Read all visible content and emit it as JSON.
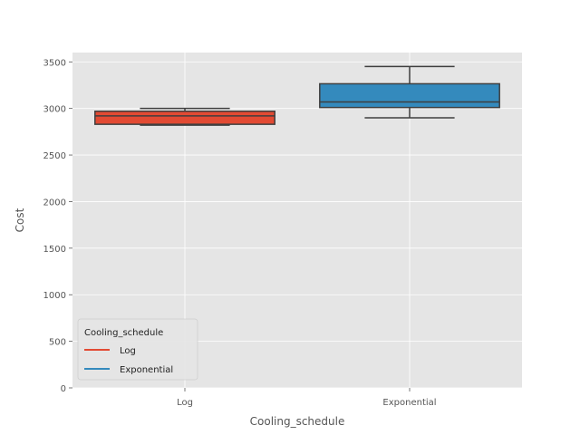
{
  "chart_data": {
    "type": "box",
    "xlabel": "Cooling_schedule",
    "ylabel": "Cost",
    "ylim": [
      0,
      3600
    ],
    "yticks": [
      0,
      500,
      1000,
      1500,
      2000,
      2500,
      3000,
      3500
    ],
    "grid": true,
    "background": "#e5e5e5",
    "categories": [
      "Log",
      "Exponential"
    ],
    "boxes": [
      {
        "category": "Log",
        "color": "#e24a33",
        "whisker_low": 2820,
        "q1": 2830,
        "median": 2920,
        "q3": 2970,
        "whisker_high": 3000
      },
      {
        "category": "Exponential",
        "color": "#348abd",
        "whisker_low": 2900,
        "q1": 3010,
        "median": 3070,
        "q3": 3265,
        "whisker_high": 3450
      }
    ],
    "legend": {
      "title": "Cooling_schedule",
      "placement": "lower-left",
      "entries": [
        {
          "label": "Log",
          "color": "#e24a33"
        },
        {
          "label": "Exponential",
          "color": "#348abd"
        }
      ]
    }
  }
}
